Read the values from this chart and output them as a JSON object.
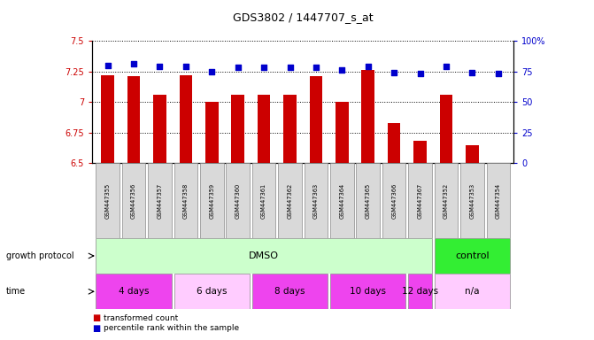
{
  "title": "GDS3802 / 1447707_s_at",
  "samples": [
    "GSM447355",
    "GSM447356",
    "GSM447357",
    "GSM447358",
    "GSM447359",
    "GSM447360",
    "GSM447361",
    "GSM447362",
    "GSM447363",
    "GSM447364",
    "GSM447365",
    "GSM447366",
    "GSM447367",
    "GSM447352",
    "GSM447353",
    "GSM447354"
  ],
  "bar_values": [
    7.22,
    7.21,
    7.06,
    7.22,
    7.0,
    7.06,
    7.06,
    7.06,
    7.21,
    7.0,
    7.26,
    6.83,
    6.68,
    7.06,
    6.65,
    6.5
  ],
  "dot_values": [
    80,
    81,
    79,
    79,
    75,
    78,
    78,
    78,
    78,
    76,
    79,
    74,
    73,
    79,
    74,
    73
  ],
  "ylim_left": [
    6.5,
    7.5
  ],
  "ylim_right": [
    0,
    100
  ],
  "yticks_left": [
    6.5,
    6.75,
    7.0,
    7.25,
    7.5
  ],
  "yticks_right": [
    0,
    25,
    50,
    75,
    100
  ],
  "bar_color": "#cc0000",
  "dot_color": "#0000cc",
  "dmso_color": "#ccffcc",
  "control_color": "#33ee33",
  "time_color_dark": "#ee44ee",
  "time_color_light": "#ffccff",
  "sample_box_color": "#d9d9d9",
  "time_groups": [
    {
      "label": "4 days",
      "start": 0,
      "end": 2,
      "dark": true
    },
    {
      "label": "6 days",
      "start": 3,
      "end": 5,
      "dark": false
    },
    {
      "label": "8 days",
      "start": 6,
      "end": 8,
      "dark": true
    },
    {
      "label": "10 days",
      "start": 9,
      "end": 11,
      "dark": true
    },
    {
      "label": "12 days",
      "start": 12,
      "end": 12,
      "dark": true
    },
    {
      "label": "n/a",
      "start": 13,
      "end": 15,
      "dark": false
    }
  ],
  "legend_bar_label": "transformed count",
  "legend_dot_label": "percentile rank within the sample",
  "xlabel_growth": "growth protocol",
  "xlabel_time": "time"
}
